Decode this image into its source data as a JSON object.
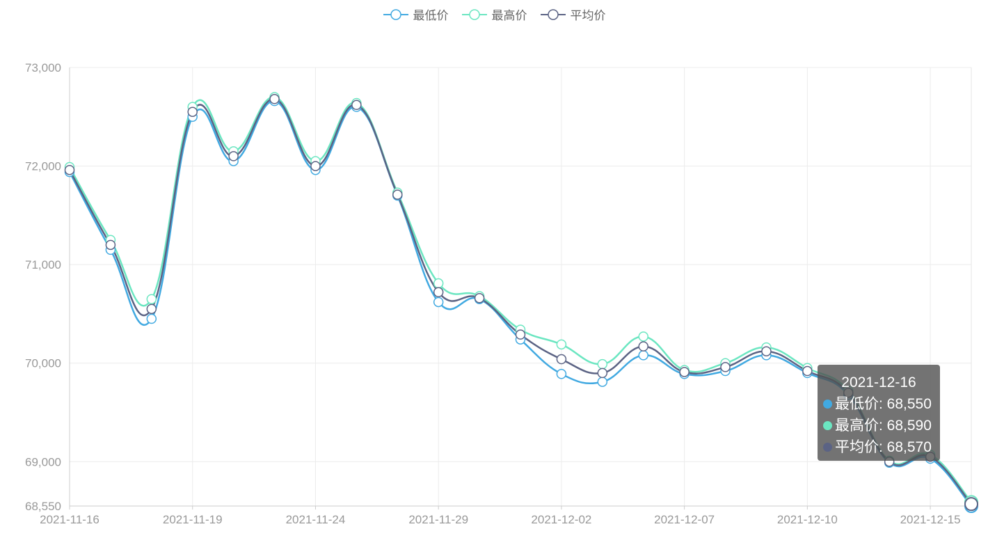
{
  "legend": [
    {
      "name": "最低价",
      "color": "#41a9e1"
    },
    {
      "name": "最高价",
      "color": "#6be6c1"
    },
    {
      "name": "平均价",
      "color": "#5b6384"
    }
  ],
  "tooltip": {
    "title": "2021-12-16",
    "rows": [
      {
        "label": "最低价: 68,550",
        "color": "#41a9e1"
      },
      {
        "label": "最高价: 68,590",
        "color": "#6be6c1"
      },
      {
        "label": "平均价: 68,570",
        "color": "#5b6384"
      }
    ]
  },
  "chart_data": {
    "type": "line",
    "x": [
      "2021-11-16",
      "2021-11-17",
      "2021-11-18",
      "2021-11-19",
      "2021-11-22",
      "2021-11-23",
      "2021-11-24",
      "2021-11-25",
      "2021-11-26",
      "2021-11-29",
      "2021-11-30",
      "2021-12-01",
      "2021-12-02",
      "2021-12-03",
      "2021-12-06",
      "2021-12-07",
      "2021-12-08",
      "2021-12-09",
      "2021-12-10",
      "2021-12-13",
      "2021-12-14",
      "2021-12-15",
      "2021-12-16"
    ],
    "x_tick_labels": [
      "2021-11-16",
      "2021-11-19",
      "2021-11-24",
      "2021-11-29",
      "2021-12-02",
      "2021-12-07",
      "2021-12-10",
      "2021-12-15"
    ],
    "x_tick_indices": [
      0,
      3,
      6,
      9,
      12,
      15,
      18,
      21
    ],
    "series": [
      {
        "name": "最低价",
        "color": "#41a9e1",
        "values": [
          71940,
          71150,
          70450,
          72500,
          72050,
          72660,
          71960,
          72600,
          71700,
          70620,
          70650,
          70240,
          69890,
          69810,
          70080,
          69890,
          69920,
          70080,
          69900,
          69680,
          68990,
          69030,
          68550
        ]
      },
      {
        "name": "最高价",
        "color": "#6be6c1",
        "values": [
          71990,
          71250,
          70650,
          72600,
          72150,
          72700,
          72050,
          72640,
          71730,
          70810,
          70680,
          70340,
          70190,
          69990,
          70270,
          69930,
          70000,
          70160,
          69950,
          69720,
          69010,
          69070,
          68590
        ]
      },
      {
        "name": "平均价",
        "color": "#5b6384",
        "values": [
          71960,
          71200,
          70550,
          72550,
          72100,
          72680,
          72000,
          72620,
          71710,
          70720,
          70660,
          70290,
          70040,
          69900,
          70170,
          69910,
          69960,
          70120,
          69920,
          69700,
          69000,
          69050,
          68570
        ]
      }
    ],
    "y_ticks": [
      68550,
      69000,
      70000,
      71000,
      72000,
      73000
    ],
    "y_tick_labels": [
      "68,550",
      "69,000",
      "70,000",
      "71,000",
      "72,000",
      "73,000"
    ],
    "ylim": [
      68550,
      73000
    ],
    "grid": true,
    "legend_position": "top-center"
  }
}
